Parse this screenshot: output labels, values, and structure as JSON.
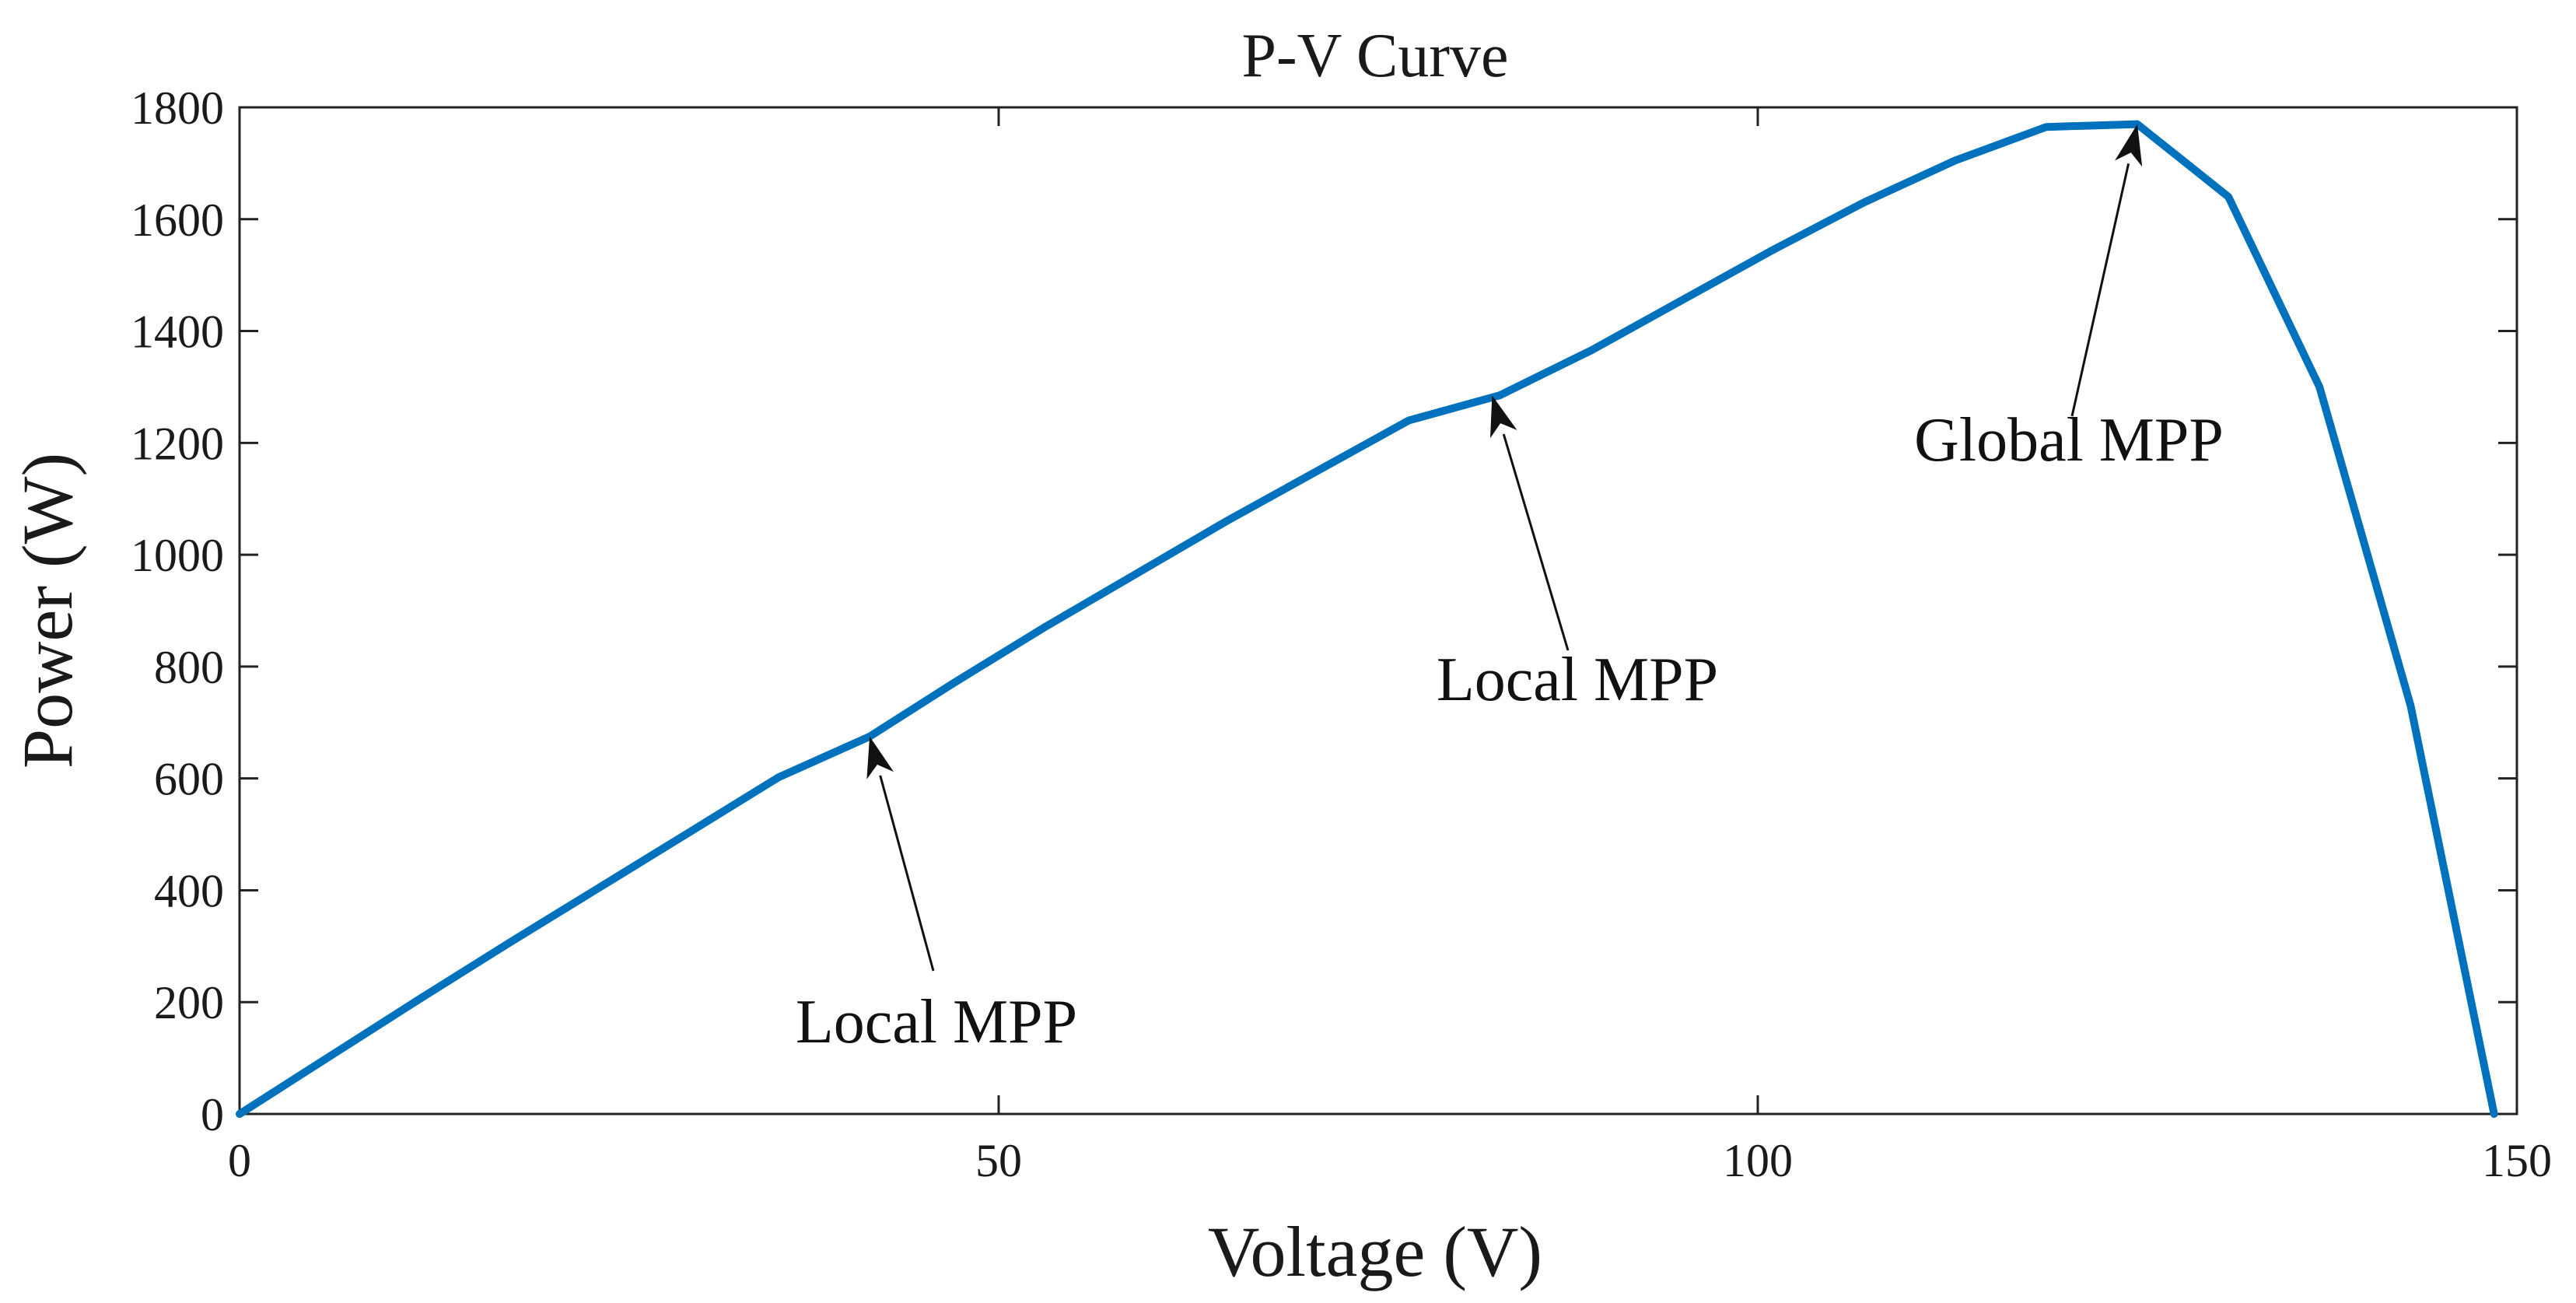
{
  "chart_data": {
    "type": "line",
    "title": "P-V Curve",
    "xlabel": "Voltage (V)",
    "ylabel": "Power (W)",
    "xlim": [
      0,
      150
    ],
    "ylim": [
      0,
      1800
    ],
    "xticks": [
      0,
      50,
      100,
      150
    ],
    "yticks": [
      0,
      200,
      400,
      600,
      800,
      1000,
      1200,
      1400,
      1600,
      1800
    ],
    "grid": false,
    "series": [
      {
        "name": "P-V",
        "color": "#0072BD",
        "x": [
          0,
          6,
          12,
          18,
          24,
          30,
          35.5,
          41.5,
          47,
          53,
          59,
          65,
          71,
          77,
          83,
          89,
          95,
          101,
          107,
          113,
          119,
          125,
          131,
          137,
          143,
          148.5
        ],
        "y": [
          0,
          104,
          208,
          310,
          410,
          510,
          602,
          675,
          770,
          870,
          965,
          1060,
          1150,
          1240,
          1285,
          1365,
          1455,
          1545,
          1630,
          1705,
          1765,
          1770,
          1640,
          1300,
          730,
          0
        ]
      }
    ],
    "annotations": [
      {
        "text": "Local MPP",
        "x": 41.5,
        "y": 675
      },
      {
        "text": "Local MPP",
        "x": 82.5,
        "y": 1285
      },
      {
        "text": "Global MPP",
        "x": 125,
        "y": 1770
      }
    ]
  }
}
